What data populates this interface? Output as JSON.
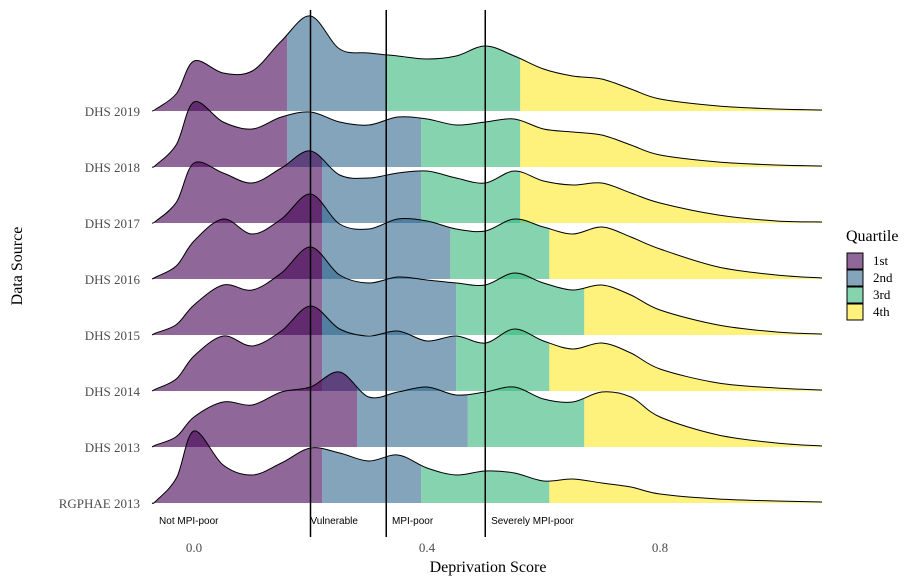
{
  "chart_data": {
    "type": "area",
    "subtype": "ridgeline",
    "xlabel": "Deprivation Score",
    "ylabel": "Data Source",
    "x_ticks": [
      0.0,
      0.4,
      0.8
    ],
    "x_tick_labels": [
      "0.0",
      "0.4",
      "0.8"
    ],
    "xlim": [
      -0.07,
      1.08
    ],
    "grid": false,
    "legend": {
      "title": "Quartile",
      "position": "right",
      "items": [
        {
          "label": "1st",
          "color": "#440154"
        },
        {
          "label": "2nd",
          "color": "#31688E"
        },
        {
          "label": "3rd",
          "color": "#35B779"
        },
        {
          "label": "4th",
          "color": "#FDE725"
        }
      ]
    },
    "fill_opacity": 0.6,
    "vlines": [
      {
        "x": 0.2,
        "label": "Not MPI-poor",
        "label_x": -0.06
      },
      {
        "x": 0.33,
        "label": "Vulnerable",
        "label_x": 0.2
      },
      {
        "x": 0.5,
        "label": "MPI-poor",
        "label_x": 0.34
      },
      {
        "x": 0.5,
        "label": "Severely MPI-poor",
        "label_x": 0.51
      }
    ],
    "threshold_lines": [
      0.2,
      0.33,
      0.5
    ],
    "series": [
      {
        "name": "RGPHAE 2013",
        "quartile_breaks": [
          0.22,
          0.39,
          0.61
        ],
        "density": [
          [
            0.0,
            0.72
          ],
          [
            0.05,
            0.38
          ],
          [
            0.1,
            0.28
          ],
          [
            0.15,
            0.4
          ],
          [
            0.2,
            0.55
          ],
          [
            0.25,
            0.5
          ],
          [
            0.3,
            0.42
          ],
          [
            0.35,
            0.48
          ],
          [
            0.4,
            0.35
          ],
          [
            0.45,
            0.28
          ],
          [
            0.5,
            0.32
          ],
          [
            0.55,
            0.3
          ],
          [
            0.6,
            0.22
          ],
          [
            0.65,
            0.24
          ],
          [
            0.7,
            0.2
          ],
          [
            0.75,
            0.16
          ],
          [
            0.8,
            0.09
          ],
          [
            0.9,
            0.04
          ],
          [
            1.0,
            0.02
          ]
        ]
      },
      {
        "name": "DHS 2013",
        "quartile_breaks": [
          0.28,
          0.47,
          0.67
        ],
        "density": [
          [
            0.0,
            0.3
          ],
          [
            0.05,
            0.45
          ],
          [
            0.1,
            0.42
          ],
          [
            0.15,
            0.55
          ],
          [
            0.2,
            0.6
          ],
          [
            0.25,
            0.75
          ],
          [
            0.3,
            0.5
          ],
          [
            0.35,
            0.55
          ],
          [
            0.4,
            0.6
          ],
          [
            0.45,
            0.52
          ],
          [
            0.5,
            0.55
          ],
          [
            0.55,
            0.6
          ],
          [
            0.6,
            0.48
          ],
          [
            0.65,
            0.45
          ],
          [
            0.7,
            0.55
          ],
          [
            0.75,
            0.5
          ],
          [
            0.8,
            0.3
          ],
          [
            0.9,
            0.12
          ],
          [
            1.0,
            0.04
          ]
        ]
      },
      {
        "name": "DHS 2014",
        "quartile_breaks": [
          0.22,
          0.45,
          0.61
        ],
        "density": [
          [
            0.0,
            0.35
          ],
          [
            0.05,
            0.55
          ],
          [
            0.1,
            0.45
          ],
          [
            0.15,
            0.6
          ],
          [
            0.2,
            0.85
          ],
          [
            0.25,
            0.62
          ],
          [
            0.3,
            0.55
          ],
          [
            0.35,
            0.6
          ],
          [
            0.4,
            0.5
          ],
          [
            0.45,
            0.55
          ],
          [
            0.5,
            0.48
          ],
          [
            0.55,
            0.62
          ],
          [
            0.6,
            0.5
          ],
          [
            0.65,
            0.42
          ],
          [
            0.7,
            0.48
          ],
          [
            0.75,
            0.38
          ],
          [
            0.8,
            0.22
          ],
          [
            0.9,
            0.08
          ],
          [
            1.0,
            0.03
          ]
        ]
      },
      {
        "name": "DHS 2015",
        "quartile_breaks": [
          0.22,
          0.45,
          0.67
        ],
        "density": [
          [
            0.0,
            0.3
          ],
          [
            0.05,
            0.5
          ],
          [
            0.1,
            0.45
          ],
          [
            0.15,
            0.62
          ],
          [
            0.2,
            0.88
          ],
          [
            0.25,
            0.6
          ],
          [
            0.3,
            0.52
          ],
          [
            0.35,
            0.58
          ],
          [
            0.4,
            0.55
          ],
          [
            0.45,
            0.52
          ],
          [
            0.5,
            0.5
          ],
          [
            0.55,
            0.62
          ],
          [
            0.6,
            0.52
          ],
          [
            0.65,
            0.45
          ],
          [
            0.7,
            0.5
          ],
          [
            0.75,
            0.4
          ],
          [
            0.8,
            0.25
          ],
          [
            0.9,
            0.1
          ],
          [
            1.0,
            0.03
          ]
        ]
      },
      {
        "name": "DHS 2016",
        "quartile_breaks": [
          0.22,
          0.44,
          0.61
        ],
        "density": [
          [
            0.0,
            0.38
          ],
          [
            0.05,
            0.6
          ],
          [
            0.1,
            0.45
          ],
          [
            0.15,
            0.6
          ],
          [
            0.2,
            0.85
          ],
          [
            0.25,
            0.55
          ],
          [
            0.3,
            0.5
          ],
          [
            0.35,
            0.6
          ],
          [
            0.4,
            0.58
          ],
          [
            0.45,
            0.5
          ],
          [
            0.5,
            0.48
          ],
          [
            0.55,
            0.6
          ],
          [
            0.6,
            0.52
          ],
          [
            0.65,
            0.45
          ],
          [
            0.7,
            0.52
          ],
          [
            0.75,
            0.42
          ],
          [
            0.8,
            0.3
          ],
          [
            0.9,
            0.12
          ],
          [
            1.0,
            0.04
          ]
        ]
      },
      {
        "name": "DHS 2017",
        "quartile_breaks": [
          0.22,
          0.39,
          0.56
        ],
        "density": [
          [
            0.0,
            0.6
          ],
          [
            0.05,
            0.5
          ],
          [
            0.1,
            0.4
          ],
          [
            0.15,
            0.55
          ],
          [
            0.2,
            0.72
          ],
          [
            0.25,
            0.48
          ],
          [
            0.3,
            0.45
          ],
          [
            0.35,
            0.5
          ],
          [
            0.4,
            0.52
          ],
          [
            0.45,
            0.45
          ],
          [
            0.5,
            0.4
          ],
          [
            0.55,
            0.52
          ],
          [
            0.6,
            0.42
          ],
          [
            0.65,
            0.38
          ],
          [
            0.7,
            0.4
          ],
          [
            0.75,
            0.3
          ],
          [
            0.8,
            0.2
          ],
          [
            0.9,
            0.08
          ],
          [
            1.0,
            0.02
          ]
        ]
      },
      {
        "name": "DHS 2018",
        "quartile_breaks": [
          0.16,
          0.39,
          0.56
        ],
        "density": [
          [
            0.0,
            0.65
          ],
          [
            0.05,
            0.45
          ],
          [
            0.1,
            0.38
          ],
          [
            0.15,
            0.5
          ],
          [
            0.2,
            0.55
          ],
          [
            0.25,
            0.45
          ],
          [
            0.3,
            0.42
          ],
          [
            0.35,
            0.5
          ],
          [
            0.4,
            0.48
          ],
          [
            0.45,
            0.42
          ],
          [
            0.5,
            0.45
          ],
          [
            0.55,
            0.48
          ],
          [
            0.6,
            0.38
          ],
          [
            0.65,
            0.35
          ],
          [
            0.7,
            0.32
          ],
          [
            0.75,
            0.22
          ],
          [
            0.8,
            0.12
          ],
          [
            0.9,
            0.05
          ],
          [
            1.0,
            0.02
          ]
        ]
      },
      {
        "name": "DHS 2019",
        "quartile_breaks": [
          0.16,
          0.33,
          0.56
        ],
        "density": [
          [
            0.0,
            0.5
          ],
          [
            0.05,
            0.38
          ],
          [
            0.1,
            0.4
          ],
          [
            0.15,
            0.7
          ],
          [
            0.2,
            0.95
          ],
          [
            0.25,
            0.62
          ],
          [
            0.3,
            0.58
          ],
          [
            0.35,
            0.55
          ],
          [
            0.4,
            0.52
          ],
          [
            0.45,
            0.55
          ],
          [
            0.5,
            0.65
          ],
          [
            0.55,
            0.55
          ],
          [
            0.6,
            0.42
          ],
          [
            0.65,
            0.35
          ],
          [
            0.7,
            0.32
          ],
          [
            0.75,
            0.22
          ],
          [
            0.8,
            0.12
          ],
          [
            0.9,
            0.05
          ],
          [
            1.0,
            0.02
          ]
        ]
      }
    ]
  }
}
